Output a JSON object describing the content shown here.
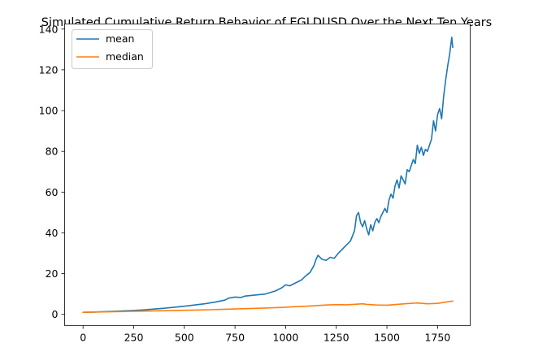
{
  "chart_data": {
    "type": "line",
    "title": "Simulated Cumulative Return Behavior of EGLDUSD Over the Next Ten Years",
    "xlabel": "",
    "ylabel": "",
    "xlim": [
      -91,
      1911
    ],
    "ylim": [
      -5.5,
      142.5
    ],
    "xticks": [
      0,
      250,
      500,
      750,
      1000,
      1250,
      1500,
      1750
    ],
    "yticks": [
      0,
      20,
      40,
      60,
      80,
      100,
      120,
      140
    ],
    "grid": false,
    "legend_position": "top-left",
    "series": [
      {
        "name": "mean",
        "color": "#1f77b4",
        "x": [
          0,
          50,
          100,
          150,
          200,
          250,
          300,
          350,
          400,
          450,
          500,
          550,
          600,
          650,
          700,
          720,
          750,
          780,
          800,
          850,
          900,
          950,
          980,
          1000,
          1020,
          1050,
          1080,
          1100,
          1120,
          1140,
          1150,
          1160,
          1170,
          1180,
          1200,
          1220,
          1240,
          1260,
          1280,
          1300,
          1320,
          1340,
          1350,
          1360,
          1370,
          1380,
          1390,
          1400,
          1410,
          1420,
          1430,
          1440,
          1450,
          1460,
          1470,
          1480,
          1490,
          1500,
          1510,
          1520,
          1530,
          1540,
          1550,
          1560,
          1570,
          1580,
          1590,
          1600,
          1610,
          1620,
          1630,
          1640,
          1650,
          1660,
          1670,
          1680,
          1690,
          1700,
          1710,
          1720,
          1730,
          1740,
          1750,
          1760,
          1770,
          1780,
          1790,
          1800,
          1810,
          1820,
          1825
        ],
        "values": [
          1.0,
          1.1,
          1.3,
          1.5,
          1.7,
          1.9,
          2.2,
          2.6,
          3.0,
          3.5,
          4.0,
          4.6,
          5.2,
          6.0,
          7.0,
          8.0,
          8.5,
          8.3,
          9.0,
          9.5,
          10.0,
          11.5,
          13.0,
          14.5,
          14.0,
          15.5,
          17.0,
          19.0,
          20.5,
          24.0,
          27.0,
          29.0,
          28.0,
          27.0,
          26.5,
          28.0,
          27.5,
          30.0,
          32.0,
          34.0,
          36.0,
          41.0,
          48.5,
          50.0,
          45.0,
          43.0,
          46.0,
          42.0,
          39.0,
          44.0,
          41.0,
          45.0,
          47.0,
          45.0,
          48.0,
          50.0,
          52.0,
          50.0,
          56.0,
          59.0,
          57.0,
          63.0,
          66.0,
          62.0,
          68.0,
          66.0,
          64.0,
          71.0,
          70.0,
          73.0,
          76.0,
          74.0,
          83.0,
          79.0,
          82.0,
          78.0,
          81.0,
          80.0,
          83.0,
          86.0,
          95.0,
          90.0,
          98.0,
          101.0,
          96.0,
          107.0,
          115.0,
          122.0,
          128.0,
          136.0,
          131.0
        ]
      },
      {
        "name": "median",
        "color": "#ff7f0e",
        "x": [
          0,
          100,
          200,
          300,
          400,
          500,
          600,
          700,
          800,
          900,
          1000,
          1050,
          1100,
          1150,
          1200,
          1250,
          1300,
          1350,
          1380,
          1400,
          1450,
          1500,
          1550,
          1600,
          1650,
          1700,
          1750,
          1800,
          1825
        ],
        "values": [
          1.0,
          1.2,
          1.4,
          1.6,
          1.8,
          2.0,
          2.2,
          2.5,
          2.8,
          3.1,
          3.5,
          3.8,
          4.0,
          4.3,
          4.6,
          4.8,
          4.7,
          5.0,
          5.2,
          4.9,
          4.6,
          4.5,
          4.9,
          5.3,
          5.6,
          5.2,
          5.4,
          6.2,
          6.5
        ]
      }
    ]
  }
}
